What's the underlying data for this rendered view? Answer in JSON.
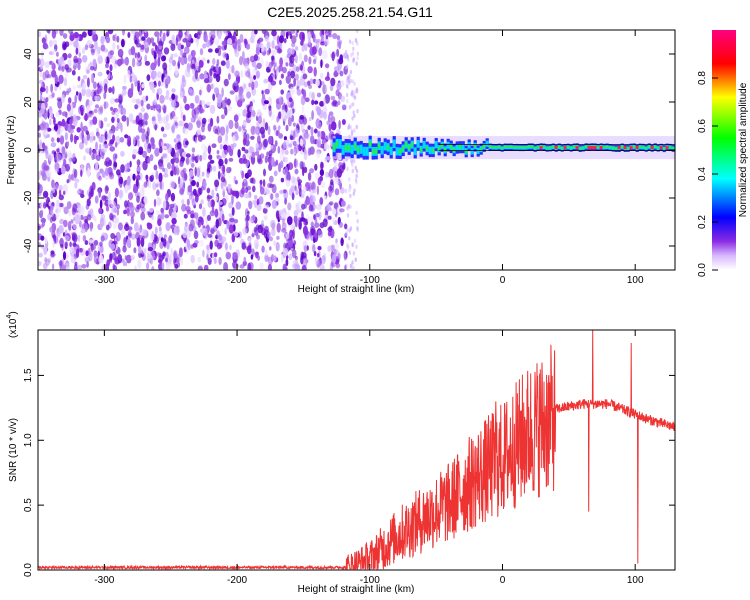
{
  "title": "C2E5.2025.258.21.54.G11",
  "chart_data": [
    {
      "type": "heatmap",
      "xlabel": "Height of straight line (km)",
      "ylabel": "Frequency (Hz)",
      "xlim": [
        -350,
        130
      ],
      "ylim": [
        -50,
        50
      ],
      "x_ticks": [
        -300,
        -200,
        -100,
        0,
        100
      ],
      "y_ticks": [
        -40,
        -20,
        0,
        20,
        40
      ],
      "noise_region_x": [
        -350,
        -118
      ],
      "signal_band": {
        "x_start": -128,
        "x_end": 130,
        "center_hz": 1,
        "width_hz": 6
      },
      "colorbar": {
        "label": "Normalized spectral amplitude",
        "range": [
          0,
          1
        ],
        "ticks": [
          0.0,
          0.2,
          0.4,
          0.6,
          0.8
        ],
        "colors": [
          "#ffffff",
          "#8a2be2",
          "#0000ff",
          "#00ffff",
          "#00ff00",
          "#ffff00",
          "#ff0000",
          "#ff0080"
        ]
      }
    },
    {
      "type": "line",
      "xlabel": "Height of straight line (km)",
      "ylabel": "SNR (10 * v/v)",
      "y_multiplier": "(x10",
      "y_multiplier_exp": "4",
      "y_multiplier_close": ")",
      "xlim": [
        -350,
        130
      ],
      "ylim": [
        0,
        1.85
      ],
      "x_ticks": [
        -300,
        -200,
        -100,
        0,
        100
      ],
      "y_ticks": [
        0.0,
        0.5,
        1.0,
        1.5
      ],
      "color": "#ee3333",
      "envelope": [
        [
          -350,
          0.02
        ],
        [
          -118,
          0.02
        ],
        [
          -100,
          0.1
        ],
        [
          -80,
          0.28
        ],
        [
          -60,
          0.42
        ],
        [
          -40,
          0.55
        ],
        [
          -20,
          0.75
        ],
        [
          0,
          0.9
        ],
        [
          20,
          1.12
        ],
        [
          40,
          1.24
        ],
        [
          60,
          1.28
        ],
        [
          80,
          1.28
        ],
        [
          100,
          1.2
        ],
        [
          110,
          1.16
        ],
        [
          130,
          1.1
        ]
      ],
      "spikes": [
        [
          68,
          1.85
        ],
        [
          -5,
          1.3
        ],
        [
          97,
          1.75
        ],
        [
          102,
          0.05
        ],
        [
          65,
          0.45
        ]
      ]
    }
  ]
}
